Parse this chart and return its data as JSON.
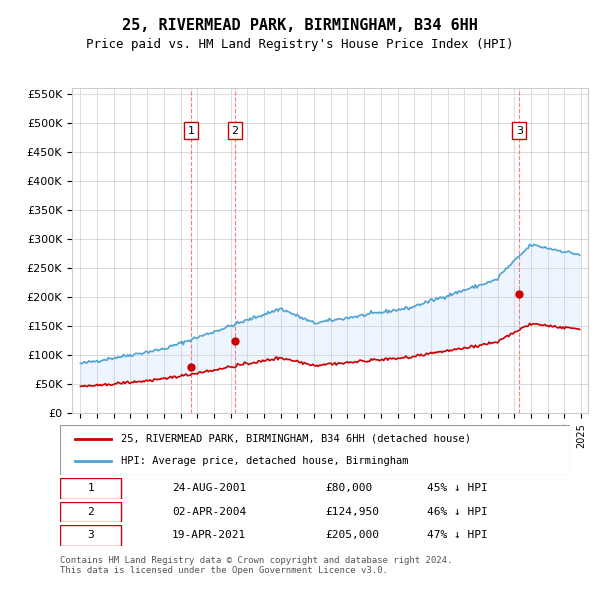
{
  "title": "25, RIVERMEAD PARK, BIRMINGHAM, B34 6HH",
  "subtitle": "Price paid vs. HM Land Registry's House Price Index (HPI)",
  "ylabel_ticks": [
    "£0",
    "£50K",
    "£100K",
    "£150K",
    "£200K",
    "£250K",
    "£300K",
    "£350K",
    "£400K",
    "£450K",
    "£500K",
    "£550K"
  ],
  "ylim": [
    0,
    560000
  ],
  "ytick_vals": [
    0,
    50000,
    100000,
    150000,
    200000,
    250000,
    300000,
    350000,
    400000,
    450000,
    500000,
    550000
  ],
  "sale_dates": [
    "2001-08-24",
    "2004-04-02",
    "2021-04-19"
  ],
  "sale_prices": [
    80000,
    124950,
    205000
  ],
  "sale_labels": [
    "1",
    "2",
    "3"
  ],
  "sale_color": "#cc0000",
  "hpi_color": "#4fa3d1",
  "hpi_fill_color": "#d6eaf8",
  "legend_sale": "25, RIVERMEAD PARK, BIRMINGHAM, B34 6HH (detached house)",
  "legend_hpi": "HPI: Average price, detached house, Birmingham",
  "table_rows": [
    [
      "1",
      "24-AUG-2001",
      "£80,000",
      "45% ↓ HPI"
    ],
    [
      "2",
      "02-APR-2004",
      "£124,950",
      "46% ↓ HPI"
    ],
    [
      "3",
      "19-APR-2021",
      "£205,000",
      "47% ↓ HPI"
    ]
  ],
  "footnote": "Contains HM Land Registry data © Crown copyright and database right 2024.\nThis data is licensed under the Open Government Licence v3.0.",
  "background_color": "#ffffff",
  "grid_color": "#cccccc",
  "sale_vline_color": "#ff4444",
  "hpi_shade_color": "#ddeeff"
}
